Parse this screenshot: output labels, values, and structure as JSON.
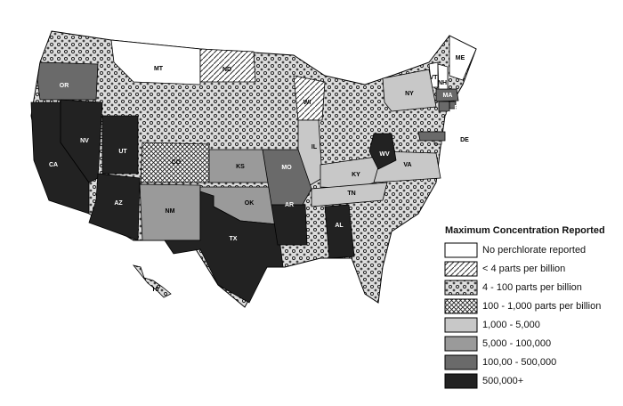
{
  "legend": {
    "title": "Maximum Concentration Reported",
    "items": [
      {
        "label": "No perchlorate reported",
        "states": [
          "MT",
          "ME",
          "VT",
          "NH"
        ]
      },
      {
        "label": "< 4 parts per billion",
        "states": [
          "ND",
          "WI"
        ]
      },
      {
        "label": "4 - 100 parts per billion",
        "states": [
          "DE",
          "HI"
        ]
      },
      {
        "label": "100 - 1,000 parts per billion",
        "states": [
          "CO"
        ]
      },
      {
        "label": "1,000 - 5,000",
        "states": [
          "IL",
          "NY",
          "KY",
          "TN",
          "VA"
        ]
      },
      {
        "label": "5,000 - 100,000",
        "states": [
          "KS",
          "NM",
          "OK"
        ]
      },
      {
        "label": "100,00 - 500,000",
        "states": [
          "OR",
          "MO",
          "MA",
          "MD",
          "RI",
          "CT"
        ]
      },
      {
        "label": "500,000+",
        "states": [
          "CA",
          "NV",
          "UT",
          "AZ",
          "TX",
          "AR",
          "AL",
          "WV"
        ]
      }
    ]
  }
}
